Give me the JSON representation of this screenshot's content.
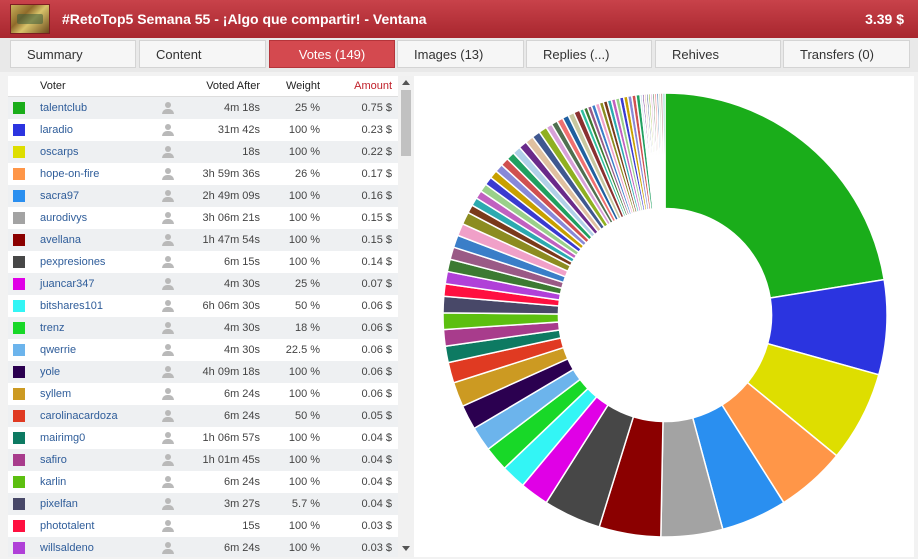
{
  "title": "#RetoTop5 Semana 55 - ¡Algo que compartir! - Ventana",
  "payout": "3.39 $",
  "tabs": [
    {
      "label": "Summary"
    },
    {
      "label": "Content"
    },
    {
      "label": "Votes (149)"
    },
    {
      "label": "Images (13)"
    },
    {
      "label": "Replies (...)"
    },
    {
      "label": "Rehives"
    },
    {
      "label": "Transfers (0)"
    }
  ],
  "table": {
    "headers": {
      "voter": "Voter",
      "voted_after": "Voted After",
      "weight": "Weight",
      "amount": "Amount"
    },
    "rows": [
      {
        "color": "#1aad1a",
        "voter": "talentclub",
        "after": "4m 18s",
        "weight": "25 %",
        "amount": "0.75 $"
      },
      {
        "color": "#2b34e0",
        "voter": "laradio",
        "after": "31m 42s",
        "weight": "100 %",
        "amount": "0.23 $"
      },
      {
        "color": "#dede00",
        "voter": "oscarps",
        "after": "18s",
        "weight": "100 %",
        "amount": "0.22 $"
      },
      {
        "color": "#ff9648",
        "voter": "hope-on-fire",
        "after": "3h 59m 36s",
        "weight": "26 %",
        "amount": "0.17 $"
      },
      {
        "color": "#2a8ff0",
        "voter": "sacra97",
        "after": "2h 49m 09s",
        "weight": "100 %",
        "amount": "0.16 $"
      },
      {
        "color": "#a3a3a3",
        "voter": "aurodivys",
        "after": "3h 06m 21s",
        "weight": "100 %",
        "amount": "0.15 $"
      },
      {
        "color": "#8b0000",
        "voter": "avellana",
        "after": "1h 47m 54s",
        "weight": "100 %",
        "amount": "0.15 $"
      },
      {
        "color": "#474747",
        "voter": "pexpresiones",
        "after": "6m 15s",
        "weight": "100 %",
        "amount": "0.14 $"
      },
      {
        "color": "#e000e6",
        "voter": "juancar347",
        "after": "4m 30s",
        "weight": "25 %",
        "amount": "0.07 $"
      },
      {
        "color": "#33f5f5",
        "voter": "bitshares101",
        "after": "6h 06m 30s",
        "weight": "50 %",
        "amount": "0.06 $"
      },
      {
        "color": "#18d828",
        "voter": "trenz",
        "after": "4m 30s",
        "weight": "18 %",
        "amount": "0.06 $"
      },
      {
        "color": "#6cb4ec",
        "voter": "qwerrie",
        "after": "4m 30s",
        "weight": "22.5 %",
        "amount": "0.06 $"
      },
      {
        "color": "#2b0050",
        "voter": "yole",
        "after": "4h 09m 18s",
        "weight": "100 %",
        "amount": "0.06 $"
      },
      {
        "color": "#cc9a22",
        "voter": "syllem",
        "after": "6m 24s",
        "weight": "100 %",
        "amount": "0.06 $"
      },
      {
        "color": "#e03a22",
        "voter": "carolinacardoza",
        "after": "6m 24s",
        "weight": "50 %",
        "amount": "0.05 $"
      },
      {
        "color": "#0d7a62",
        "voter": "mairimg0",
        "after": "1h 06m 57s",
        "weight": "100 %",
        "amount": "0.04 $"
      },
      {
        "color": "#a83c8c",
        "voter": "safiro",
        "after": "1h 01m 45s",
        "weight": "100 %",
        "amount": "0.04 $"
      },
      {
        "color": "#5cbf10",
        "voter": "karlin",
        "after": "6m 24s",
        "weight": "100 %",
        "amount": "0.04 $"
      },
      {
        "color": "#484868",
        "voter": "pixelfan",
        "after": "3m 27s",
        "weight": "5.7 %",
        "amount": "0.04 $"
      },
      {
        "color": "#ff1040",
        "voter": "phototalent",
        "after": "15s",
        "weight": "100 %",
        "amount": "0.03 $"
      },
      {
        "color": "#b040d8",
        "voter": "willsaldeno",
        "after": "6m 24s",
        "weight": "100 %",
        "amount": "0.03 $"
      }
    ]
  },
  "chart_data": {
    "type": "pie",
    "series": [
      {
        "values": [
          0.75,
          0.23,
          0.22,
          0.17,
          0.16,
          0.15,
          0.15,
          0.14,
          0.07,
          0.06,
          0.06,
          0.06,
          0.06,
          0.06,
          0.05,
          0.04,
          0.04,
          0.04,
          0.04,
          0.03,
          0.03
        ]
      }
    ],
    "remainder_values": [
      0.03,
      0.03,
      0.03,
      0.03,
      0.03,
      0.02,
      0.02,
      0.02,
      0.02,
      0.02,
      0.02,
      0.02,
      0.02,
      0.02,
      0.02,
      0.02,
      0.02,
      0.02,
      0.02,
      0.015,
      0.015,
      0.015,
      0.015,
      0.015,
      0.015,
      0.01,
      0.01,
      0.01,
      0.01,
      0.01,
      0.01,
      0.01,
      0.01,
      0.01,
      0.01,
      0.01,
      0.01,
      0.01,
      0.01,
      0.01,
      0.005,
      0.005,
      0.005,
      0.005,
      0.005,
      0.005,
      0.005,
      0.005,
      0.005,
      0.005,
      0.005,
      0.005
    ],
    "remainder_colors": [
      "#3c7a32",
      "#9a5a86",
      "#3a7ec8",
      "#f0a0c8",
      "#8c8c20",
      "#7a3a1a",
      "#2caab0",
      "#c060c0",
      "#9ad08a",
      "#3a3ad0",
      "#c8a000",
      "#8888d8",
      "#d05050",
      "#20a060",
      "#b0d0e8",
      "#6a2a8a",
      "#e0c0a0",
      "#405890",
      "#90b020",
      "#d8a0d8",
      "#507050",
      "#f07070",
      "#2060a0",
      "#c8c8a0",
      "#8a3030",
      "#30c0a0"
    ],
    "inner_radius_ratio": 0.48
  }
}
